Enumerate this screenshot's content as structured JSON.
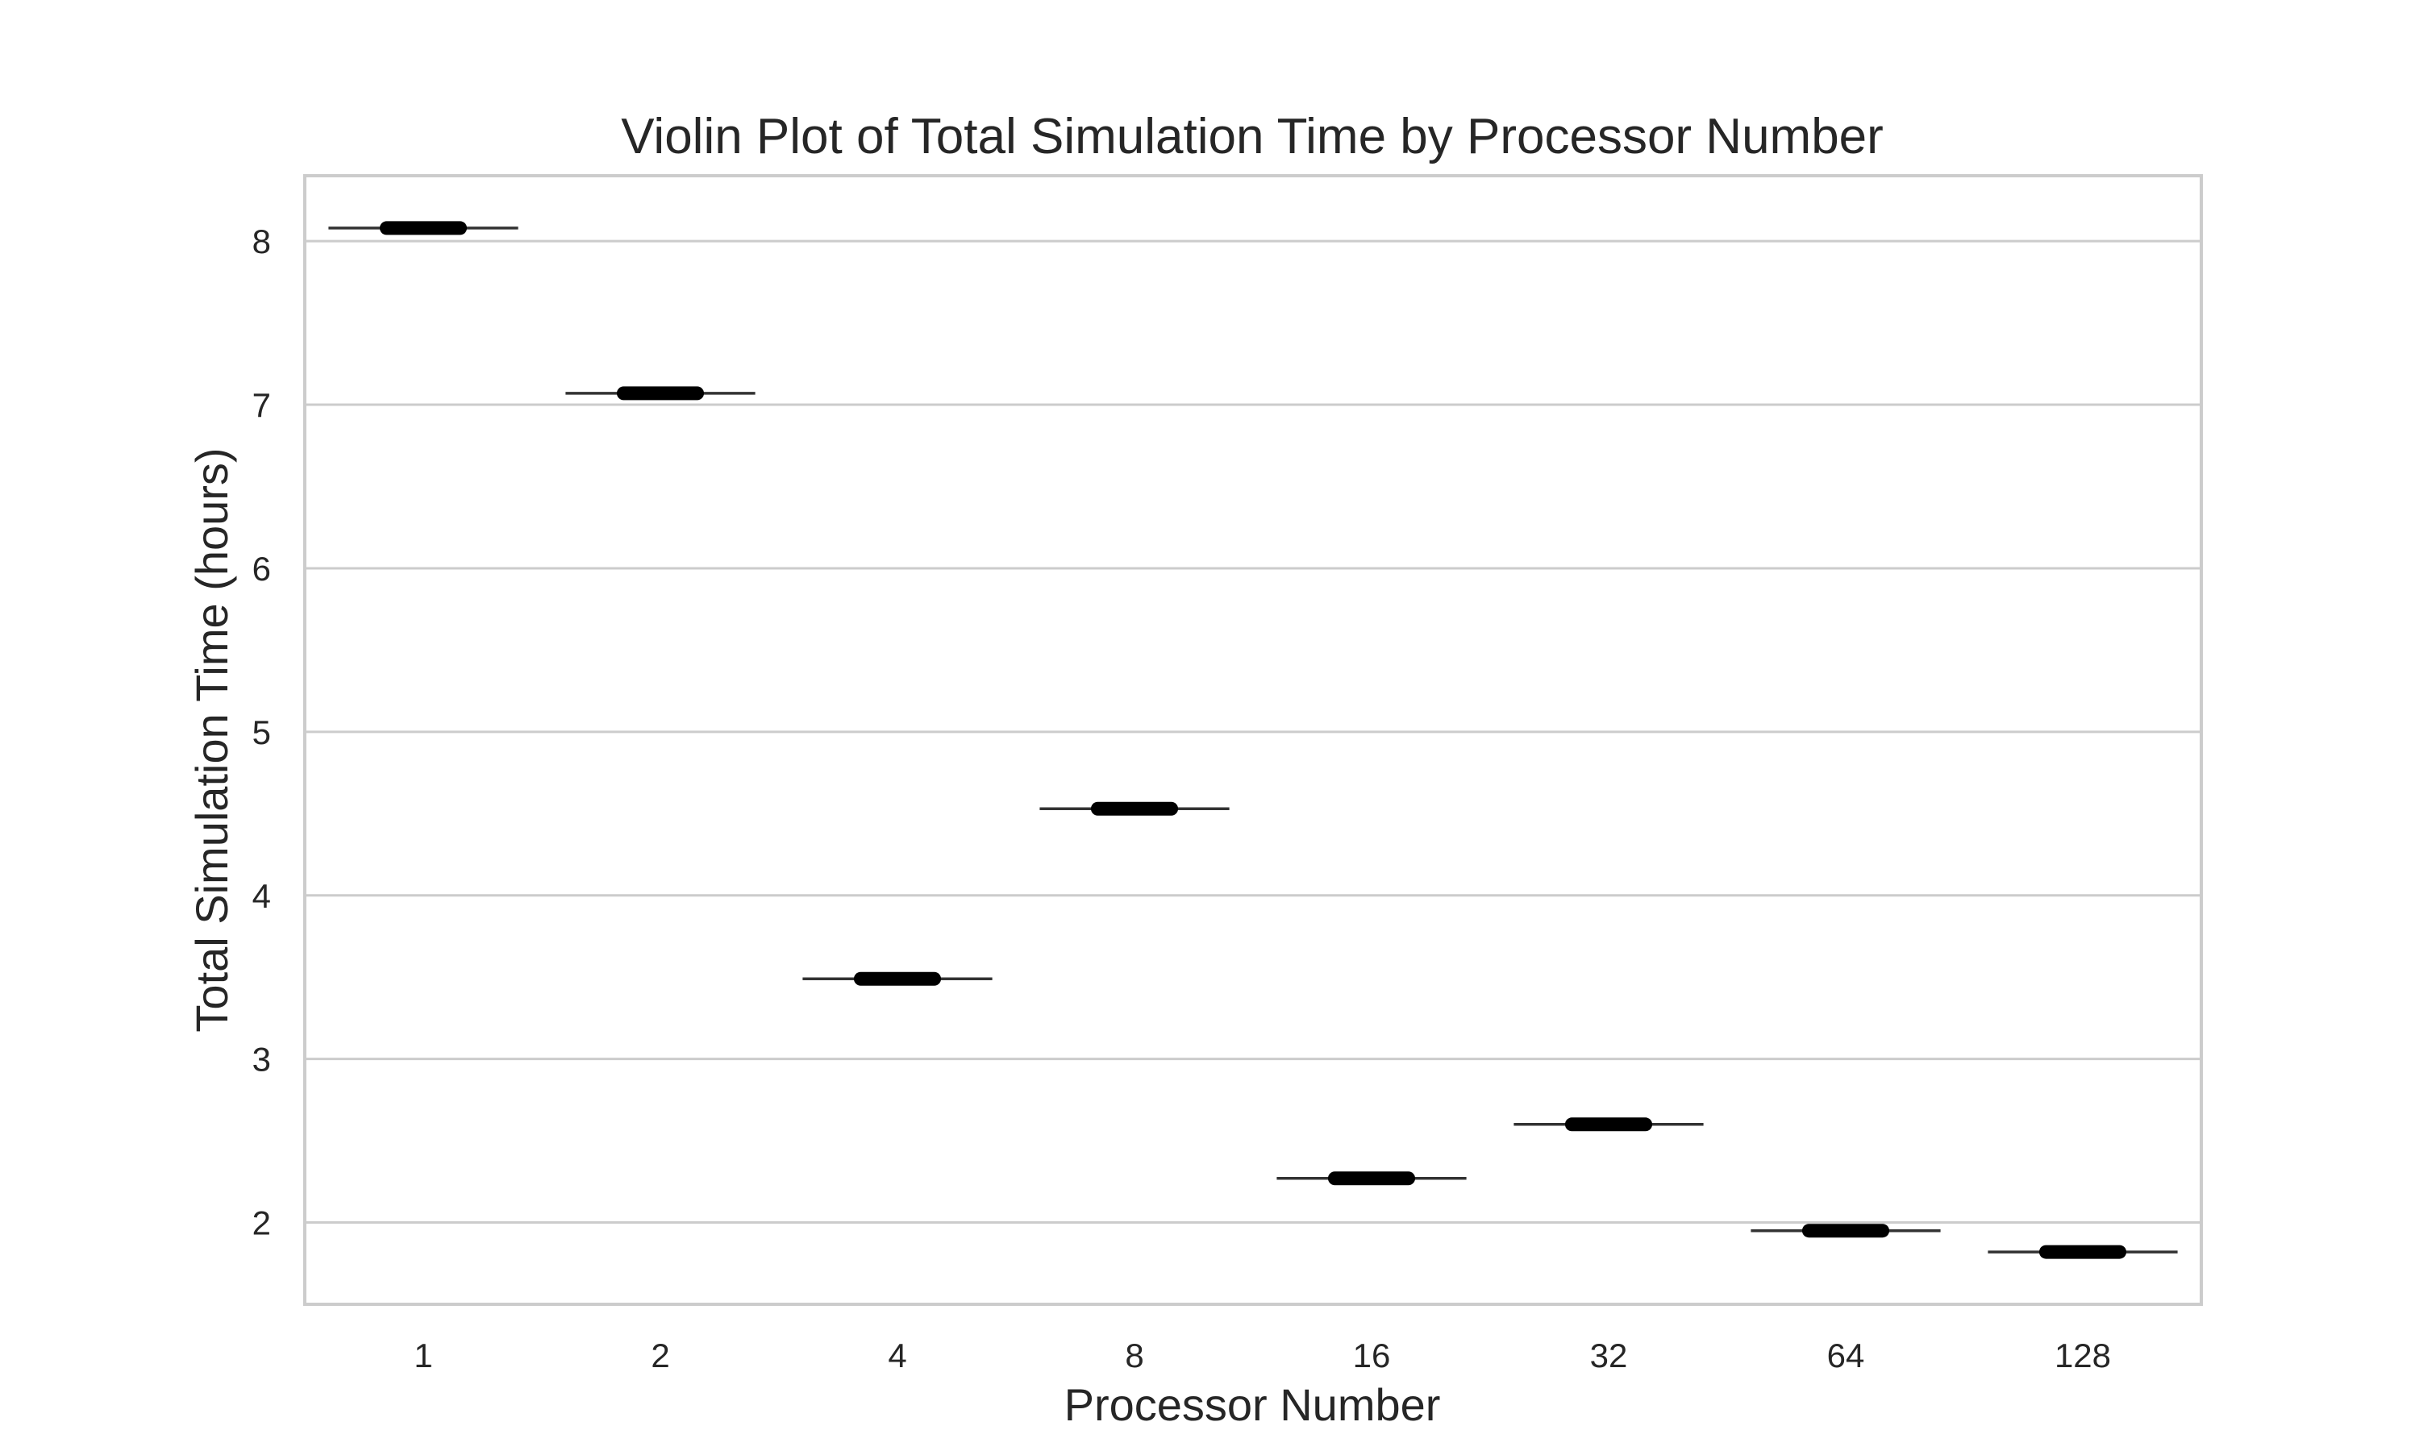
{
  "chart_data": {
    "type": "violin",
    "title": "Violin Plot of Total Simulation Time by Processor Number",
    "xlabel": "Processor Number",
    "ylabel": "Total Simulation Time (hours)",
    "categories": [
      "1",
      "2",
      "4",
      "8",
      "16",
      "32",
      "64",
      "128"
    ],
    "values": [
      8.08,
      7.07,
      3.49,
      4.53,
      2.27,
      2.6,
      1.95,
      1.82
    ],
    "ylim": [
      1.5,
      8.4
    ],
    "yticks": [
      2,
      3,
      4,
      5,
      6,
      7,
      8
    ],
    "grid": "horizontal",
    "legend": "none",
    "colors": {
      "marker": "#000000",
      "grid": "#cccccc",
      "text": "#262626"
    }
  }
}
